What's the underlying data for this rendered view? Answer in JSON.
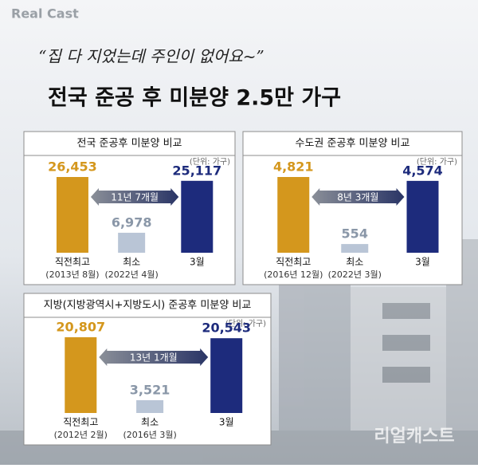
{
  "logo": "Real Cast",
  "quote": "“집 다 지었는데 주인이 없어요~”",
  "headline": "전국 준공 후 미분양 2.5만 가구",
  "watermark": "리얼캐스트",
  "chart_data": [
    {
      "type": "bar",
      "title": "전국 준공후 미분양 비교",
      "unit_note": "(단위: 가구)",
      "categories": [
        "직전최고",
        "최소",
        "3월"
      ],
      "category_notes": [
        "(2013년 8월)",
        "(2022년 4월)",
        null
      ],
      "values": [
        26453,
        6978,
        25117
      ],
      "value_labels": [
        "26,453",
        "6,978",
        "25,117"
      ],
      "colors": [
        "#d4971d",
        "#b9c5d6",
        "#1d2b7c"
      ],
      "annotation": "11년 7개월"
    },
    {
      "type": "bar",
      "title": "수도권 준공후 미분양 비교",
      "unit_note": "(단위: 가구)",
      "categories": [
        "직전최고",
        "최소",
        "3월"
      ],
      "category_notes": [
        "(2016년 12월)",
        "(2022년 3월)",
        null
      ],
      "values": [
        4821,
        554,
        4574
      ],
      "value_labels": [
        "4,821",
        "554",
        "4,574"
      ],
      "colors": [
        "#d4971d",
        "#b9c5d6",
        "#1d2b7c"
      ],
      "annotation": "8년 3개월"
    },
    {
      "type": "bar",
      "title": "지방(지방광역시+지방도시) 준공후 미분양 비교",
      "unit_note": "(단위: 가구)",
      "categories": [
        "직전최고",
        "최소",
        "3월"
      ],
      "category_notes": [
        "(2012년 2월)",
        "(2016년 3월)",
        null
      ],
      "values": [
        20807,
        3521,
        20543
      ],
      "value_labels": [
        "20,807",
        "3,521",
        "20,543"
      ],
      "colors": [
        "#d4971d",
        "#b9c5d6",
        "#1d2b7c"
      ],
      "annotation": "13년 1개월"
    }
  ]
}
